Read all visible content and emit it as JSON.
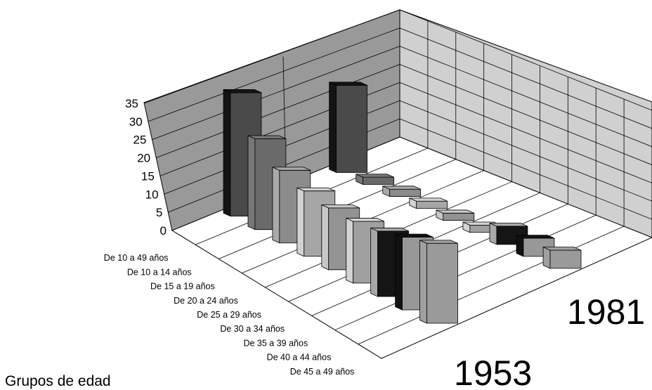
{
  "chart_data": {
    "type": "bar",
    "subtype": "3d-bar",
    "xlabel": "Grupos de edad",
    "categories": [
      "De 10 a 49 años",
      "De 10 a 14 años",
      "De 15 a 19 años",
      "De 20 a 24 años",
      "De 25 a 29 años",
      "De 30 a 34 años",
      "De 35 a 39 años",
      "De 40 a 44 años",
      "De 45 a 49 años"
    ],
    "series": [
      {
        "name": "1953",
        "values": [
          34,
          25,
          20,
          18,
          17,
          17,
          18,
          20,
          22
        ]
      },
      {
        "name": "1981",
        "values": [
          24,
          2,
          2,
          2,
          2,
          2,
          5,
          5,
          5
        ]
      }
    ],
    "ylim": [
      0,
      35
    ],
    "yticks": [
      "0",
      "5",
      "10",
      "15",
      "20",
      "25",
      "30",
      "35"
    ],
    "colors": {
      "front": [
        "#4a4a4a",
        "#6a6a6a",
        "#8c8c8c",
        "#a6a6a6",
        "#939393",
        "#a0a0a0",
        "#151515",
        "#989898",
        "#9a9a9a"
      ],
      "back": [
        "#141414",
        "#777777",
        "#a9a9a9",
        "#d2d2d2",
        "#c8c8c8",
        "#d4d4d4",
        "#a8a8a8",
        "#111111",
        "#a0a0a0"
      ]
    },
    "grid": true
  }
}
